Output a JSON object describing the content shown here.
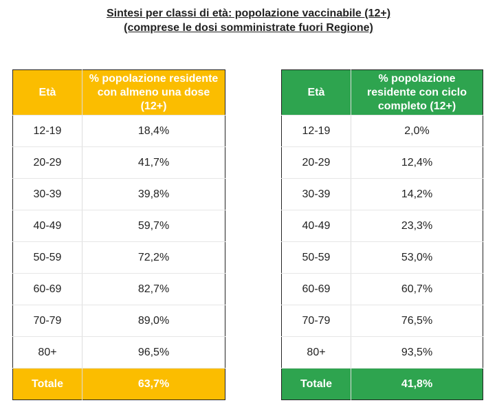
{
  "title": {
    "line1": "Sintesi per classi di età: popolazione vaccinabile (12+)",
    "line2": "(comprese le dosi somministrate fuori Regione)"
  },
  "colors": {
    "left_header": "#fbbd00",
    "right_header": "#2ea44f"
  },
  "left_table": {
    "headers": [
      "Età",
      "% popolazione residente con almeno una dose (12+)"
    ],
    "rows": [
      [
        "12-19",
        "18,4%"
      ],
      [
        "20-29",
        "41,7%"
      ],
      [
        "30-39",
        "39,8%"
      ],
      [
        "40-49",
        "59,7%"
      ],
      [
        "50-59",
        "72,2%"
      ],
      [
        "60-69",
        "82,7%"
      ],
      [
        "70-79",
        "89,0%"
      ],
      [
        "80+",
        "96,5%"
      ]
    ],
    "total": [
      "Totale",
      "63,7%"
    ]
  },
  "right_table": {
    "headers": [
      "Età",
      "% popolazione residente con ciclo completo (12+)"
    ],
    "rows": [
      [
        "12-19",
        "2,0%"
      ],
      [
        "20-29",
        "12,4%"
      ],
      [
        "30-39",
        "14,2%"
      ],
      [
        "40-49",
        "23,3%"
      ],
      [
        "50-59",
        "53,0%"
      ],
      [
        "60-69",
        "60,7%"
      ],
      [
        "70-79",
        "76,5%"
      ],
      [
        "80+",
        "93,5%"
      ]
    ],
    "total": [
      "Totale",
      "41,8%"
    ]
  }
}
